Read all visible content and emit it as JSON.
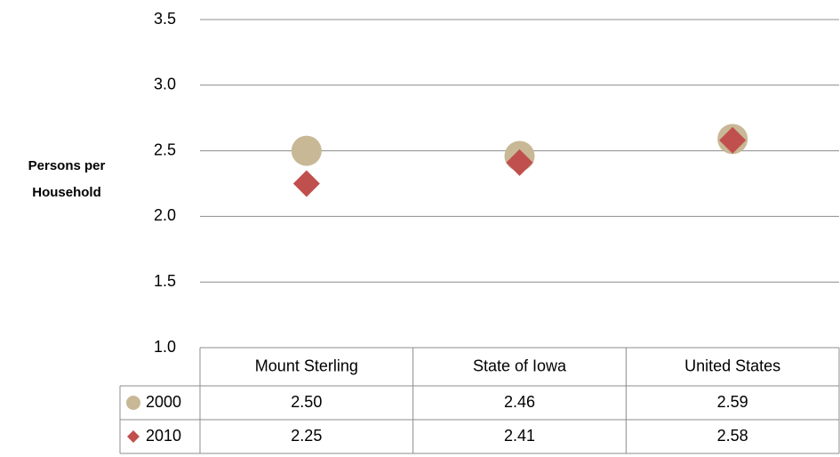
{
  "chart_data": {
    "type": "scatter",
    "y_axis_label": "Persons per Household",
    "categories": [
      "Mount Sterling",
      "State of Iowa",
      "United States"
    ],
    "series": [
      {
        "name": "2000",
        "color": "#c8b896",
        "marker": "circle",
        "values": [
          2.5,
          2.46,
          2.59
        ],
        "value_labels": [
          "2.50",
          "2.46",
          "2.59"
        ]
      },
      {
        "name": "2010",
        "color": "#c0504d",
        "marker": "diamond",
        "values": [
          2.25,
          2.41,
          2.58
        ],
        "value_labels": [
          "2.25",
          "2.41",
          "2.58"
        ]
      }
    ],
    "ylim": [
      1,
      3.5
    ],
    "yticks": [
      {
        "value": 1,
        "label": "1.0"
      },
      1.5,
      {
        "value": 2,
        "label": "2.0"
      },
      2.5,
      {
        "value": 3,
        "label": "3.0"
      },
      3.5
    ],
    "grid": true
  }
}
